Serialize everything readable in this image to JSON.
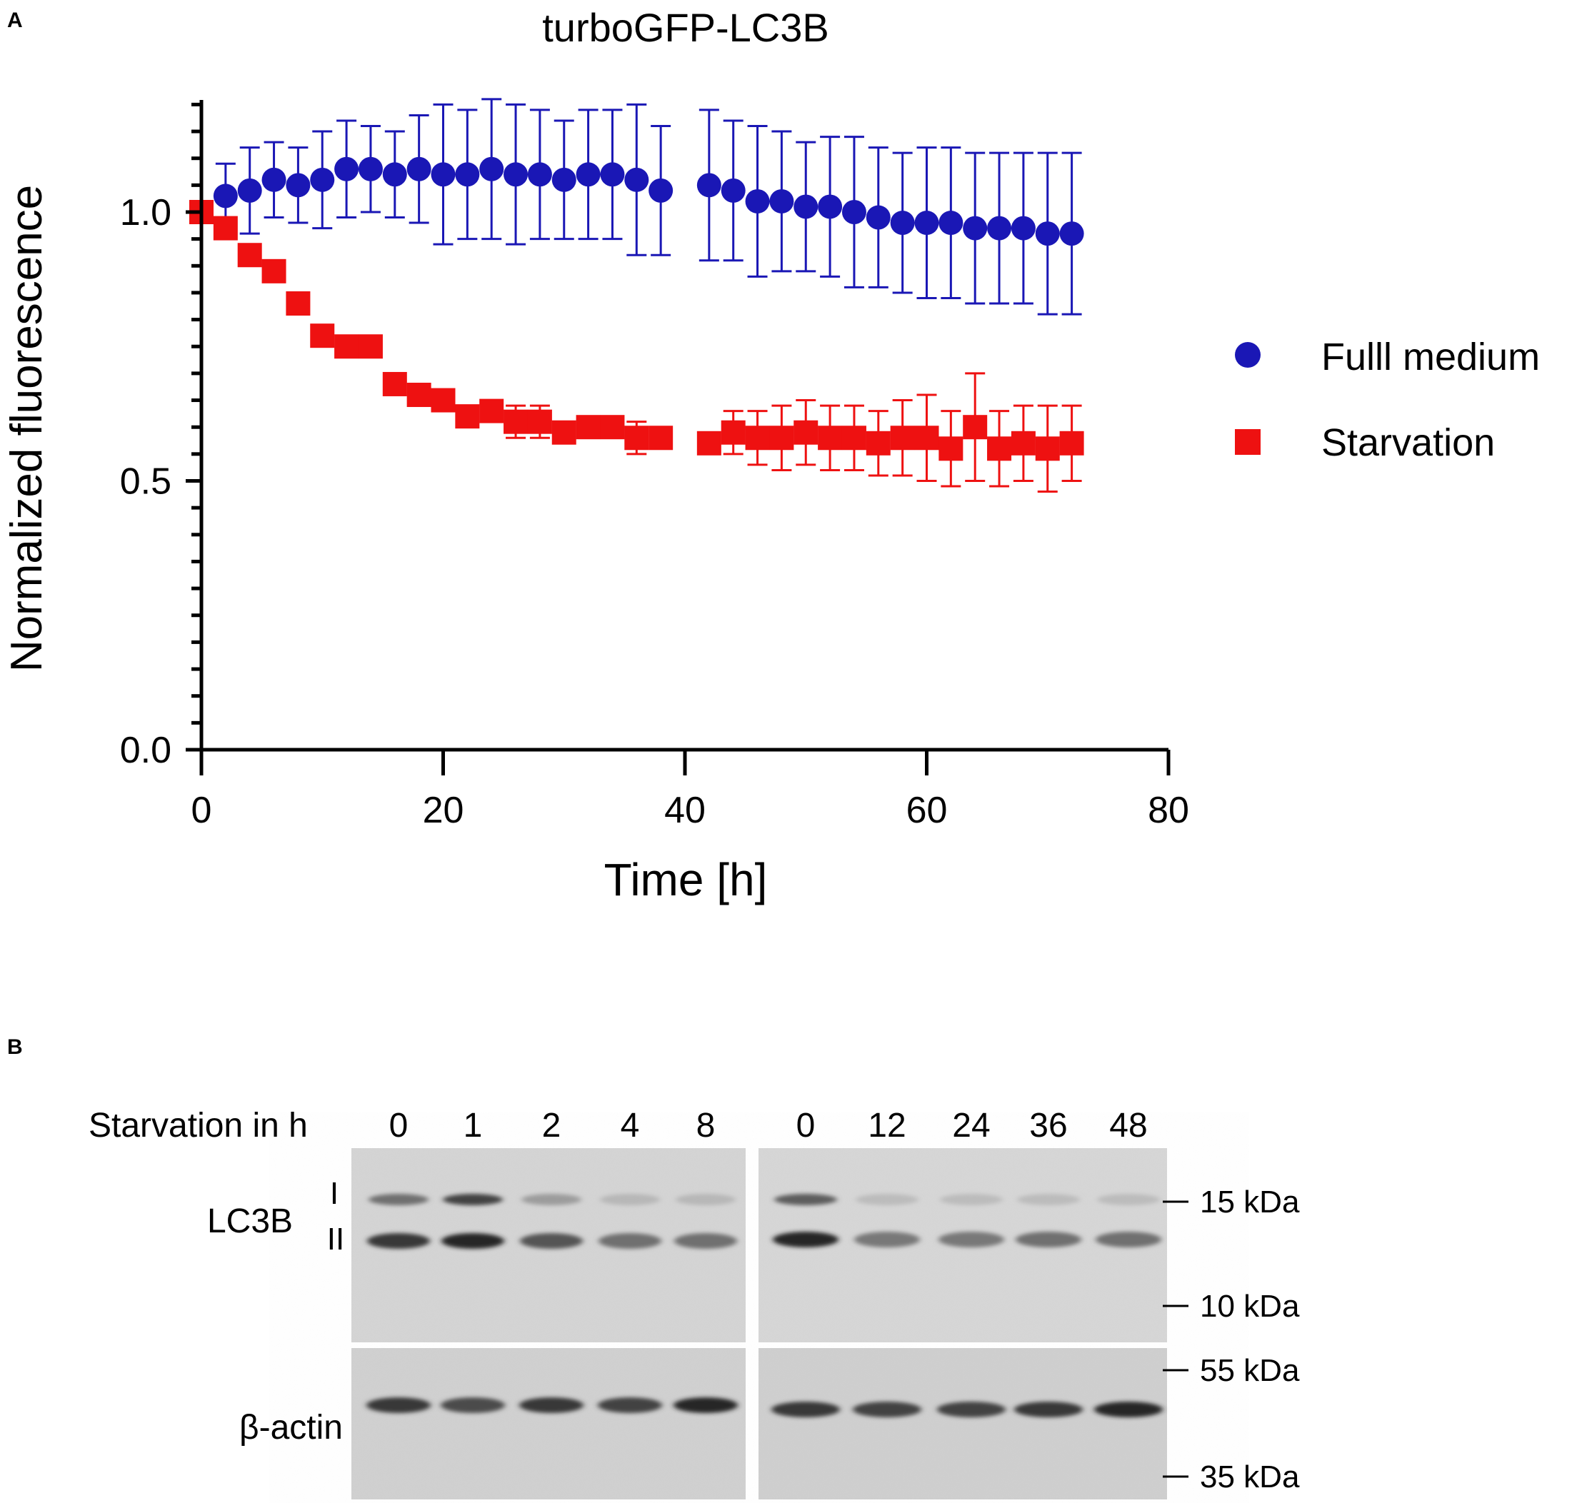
{
  "panels": {
    "a": "A",
    "b": "B"
  },
  "chart_data": {
    "type": "scatter",
    "title": "turboGFP-LC3B",
    "xlabel": "Time [h]",
    "ylabel": "Normalized fluorescence",
    "xlim": [
      0,
      80
    ],
    "ylim": [
      0,
      1.2
    ],
    "x_ticks": [
      "0",
      "20",
      "40",
      "60",
      "80"
    ],
    "y_ticks": [
      "0.0",
      "0.5",
      "1.0"
    ],
    "x_tick_values": [
      0,
      20,
      40,
      60,
      80
    ],
    "y_tick_values": [
      0,
      0.5,
      1.0
    ],
    "legend_position": "right",
    "series": [
      {
        "name": "Fulll medium",
        "color": "#1a17b5",
        "marker": "circle",
        "x": [
          0,
          2,
          4,
          6,
          8,
          10,
          12,
          14,
          16,
          18,
          20,
          22,
          24,
          26,
          28,
          30,
          32,
          34,
          36,
          38,
          42,
          44,
          46,
          48,
          50,
          52,
          54,
          56,
          58,
          60,
          62,
          64,
          66,
          68,
          70,
          72
        ],
        "y": [
          1.0,
          1.03,
          1.04,
          1.06,
          1.05,
          1.06,
          1.08,
          1.08,
          1.07,
          1.08,
          1.07,
          1.07,
          1.08,
          1.07,
          1.07,
          1.06,
          1.07,
          1.07,
          1.06,
          1.04,
          1.05,
          1.04,
          1.02,
          1.02,
          1.01,
          1.01,
          1.0,
          0.99,
          0.98,
          0.98,
          0.98,
          0.97,
          0.97,
          0.97,
          0.96,
          0.96
        ],
        "error": [
          0.0,
          0.06,
          0.08,
          0.07,
          0.07,
          0.09,
          0.09,
          0.08,
          0.08,
          0.1,
          0.13,
          0.12,
          0.13,
          0.13,
          0.12,
          0.11,
          0.12,
          0.12,
          0.14,
          0.12,
          0.14,
          0.13,
          0.14,
          0.13,
          0.12,
          0.13,
          0.14,
          0.13,
          0.13,
          0.14,
          0.14,
          0.14,
          0.14,
          0.14,
          0.15,
          0.15
        ]
      },
      {
        "name": "Starvation",
        "color": "#ee1111",
        "marker": "square",
        "x": [
          0,
          2,
          4,
          6,
          8,
          10,
          12,
          14,
          16,
          18,
          20,
          22,
          24,
          26,
          28,
          30,
          32,
          34,
          36,
          38,
          42,
          44,
          46,
          48,
          50,
          52,
          54,
          56,
          58,
          60,
          62,
          64,
          66,
          68,
          70,
          72
        ],
        "y": [
          1.0,
          0.97,
          0.92,
          0.89,
          0.83,
          0.77,
          0.75,
          0.75,
          0.68,
          0.66,
          0.65,
          0.62,
          0.63,
          0.61,
          0.61,
          0.59,
          0.6,
          0.6,
          0.58,
          0.58,
          0.57,
          0.59,
          0.58,
          0.58,
          0.59,
          0.58,
          0.58,
          0.57,
          0.58,
          0.58,
          0.56,
          0.6,
          0.56,
          0.57,
          0.56,
          0.57
        ],
        "error": [
          0.0,
          0.02,
          0.02,
          0.02,
          0.02,
          0.02,
          0.01,
          0.01,
          0.02,
          0.02,
          0.02,
          0.02,
          0.02,
          0.03,
          0.03,
          0.02,
          0.02,
          0.02,
          0.03,
          0.02,
          0.02,
          0.04,
          0.05,
          0.06,
          0.06,
          0.06,
          0.06,
          0.06,
          0.07,
          0.08,
          0.07,
          0.1,
          0.07,
          0.07,
          0.08,
          0.07
        ]
      }
    ]
  },
  "blot": {
    "row_label": "Starvation in h",
    "lanes_left": [
      "0",
      "1",
      "2",
      "4",
      "8"
    ],
    "lanes_right": [
      "0",
      "12",
      "24",
      "36",
      "48"
    ],
    "protein_lc3b": "LC3B",
    "band_i": "I",
    "band_ii": "II",
    "protein_actin": "β-actin",
    "markers": [
      "15 kDa",
      "10 kDa",
      "55 kDa",
      "35 kDa"
    ],
    "lc3b_i_intensity_left": [
      0.55,
      0.8,
      0.3,
      0.15,
      0.15
    ],
    "lc3b_ii_intensity_left": [
      0.85,
      0.95,
      0.7,
      0.55,
      0.55
    ],
    "lc3b_i_intensity_right": [
      0.65,
      0.12,
      0.12,
      0.12,
      0.12
    ],
    "lc3b_ii_intensity_right": [
      0.95,
      0.5,
      0.5,
      0.55,
      0.55
    ],
    "actin_intensity_left": [
      0.85,
      0.75,
      0.85,
      0.8,
      0.95
    ],
    "actin_intensity_right": [
      0.85,
      0.8,
      0.8,
      0.85,
      0.95
    ]
  }
}
